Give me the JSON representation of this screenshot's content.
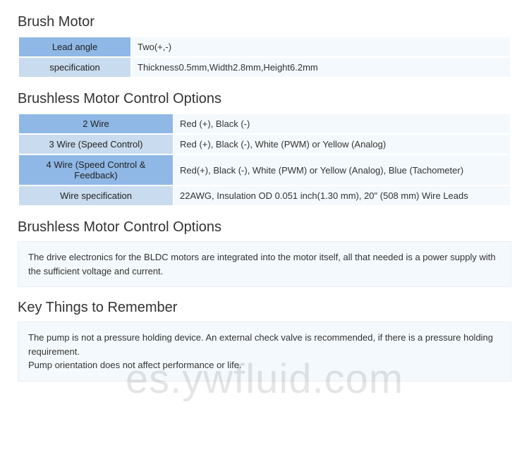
{
  "colors": {
    "header_row_bg": "#8fb8e6",
    "alt_row_bg": "#c9dbee",
    "value_bg": "#f4f9fd",
    "notebox_bg": "#f4f9fd",
    "border": "#ffffff",
    "text": "#333333",
    "title": "#333333",
    "watermark": "rgba(0,0,0,0.10)"
  },
  "typography": {
    "title_fontsize": 20,
    "title_fontweight": 300,
    "body_fontsize": 13
  },
  "section1": {
    "title": "Brush Motor",
    "type": "table",
    "label_col_width": 160,
    "rows": [
      {
        "label_bg": "#8fb8e6",
        "label": "Lead angle",
        "value": "Two(+,-)"
      },
      {
        "label_bg": "#c9dbee",
        "label": "specification",
        "value": "Thickness0.5mm,Width2.8mm,Height6.2mm"
      }
    ]
  },
  "section2": {
    "title": "Brushless Motor Control Options",
    "type": "table",
    "label_col_width": 220,
    "rows": [
      {
        "label_bg": "#8fb8e6",
        "label": "2 Wire",
        "value": "Red (+), Black (-)"
      },
      {
        "label_bg": "#c9dbee",
        "label": "3 Wire (Speed Control)",
        "value": "Red (+), Black (-), White (PWM) or Yellow (Analog)"
      },
      {
        "label_bg": "#8fb8e6",
        "label": "4 Wire (Speed Control & Feedback)",
        "value": "Red(+), Black (-), White (PWM) or Yellow (Analog), Blue (Tachometer)"
      },
      {
        "label_bg": "#c9dbee",
        "label": "Wire specification",
        "value": "22AWG, Insulation OD 0.051 inch(1.30 mm), 20\" (508 mm) Wire Leads"
      }
    ]
  },
  "section3": {
    "title": "Brushless Motor Control Options",
    "type": "notebox",
    "text": "The drive electronics for the BLDC motors are integrated into the motor itself, all that needed is a power supply with the sufficient voltage and current."
  },
  "section4": {
    "title": "Key Things to Remember",
    "type": "notebox",
    "lines": [
      "The pump is not a pressure holding device. An external check valve is recommended, if there is a pressure holding requirement.",
      "Pump orientation does not affect performance or life."
    ]
  },
  "watermark": "es.ywfluid.com"
}
